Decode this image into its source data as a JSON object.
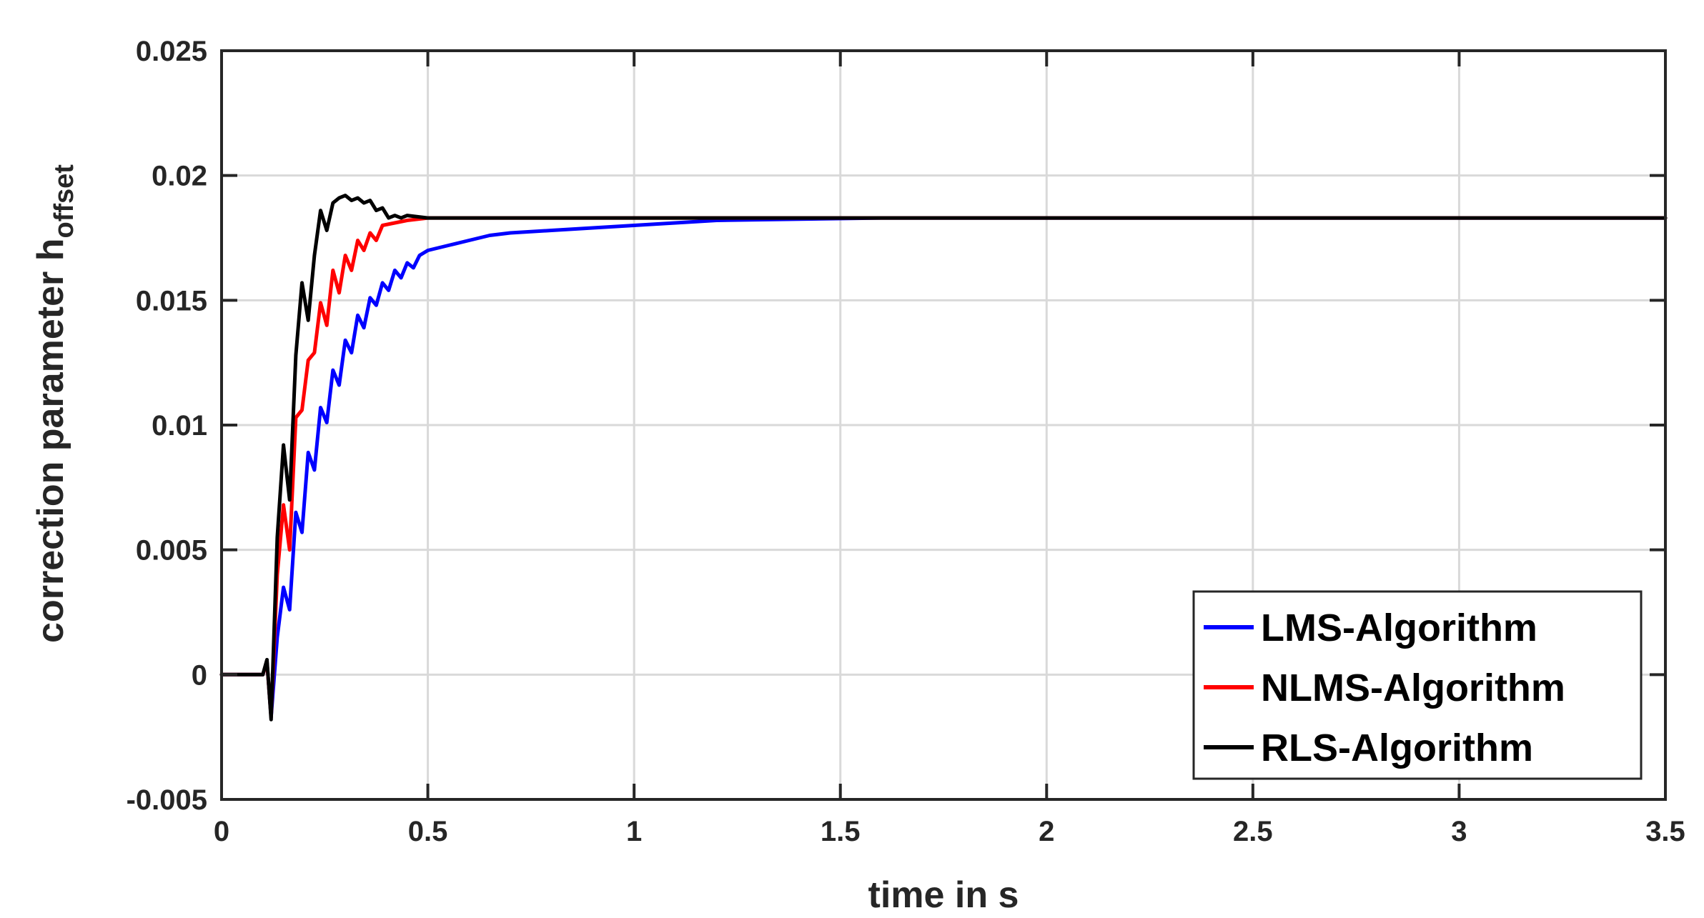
{
  "chart_data": {
    "type": "line",
    "title": "",
    "xlabel": "time in s",
    "ylabel": {
      "main": "correction parameter h",
      "subscript": "offset"
    },
    "xlim": [
      0,
      3.5
    ],
    "ylim": [
      -0.005,
      0.025
    ],
    "xticks": [
      0,
      0.5,
      1,
      1.5,
      2,
      2.5,
      3,
      3.5
    ],
    "xtick_labels": [
      "0",
      "0.5",
      "1",
      "1.5",
      "2",
      "2.5",
      "3",
      "3.5"
    ],
    "yticks": [
      -0.005,
      0,
      0.005,
      0.01,
      0.015,
      0.02,
      0.025
    ],
    "ytick_labels": [
      "-0.005",
      "0",
      "0.005",
      "0.01",
      "0.015",
      "0.02",
      "0.025"
    ],
    "grid": true,
    "legend_position": "bottom-right",
    "series": [
      {
        "name": "LMS-Algorithm",
        "color": "#0000ff",
        "x": [
          0,
          0.1,
          0.11,
          0.12,
          0.135,
          0.15,
          0.165,
          0.18,
          0.195,
          0.21,
          0.225,
          0.24,
          0.255,
          0.27,
          0.285,
          0.3,
          0.315,
          0.33,
          0.345,
          0.36,
          0.375,
          0.39,
          0.405,
          0.42,
          0.435,
          0.45,
          0.465,
          0.48,
          0.5,
          0.55,
          0.6,
          0.65,
          0.7,
          0.8,
          0.9,
          1.0,
          1.1,
          1.2,
          1.4,
          1.6,
          2.0,
          3.5
        ],
        "y": [
          0,
          0,
          0.0005,
          -0.0017,
          0.0015,
          0.0035,
          0.0026,
          0.0065,
          0.0057,
          0.0089,
          0.0082,
          0.0107,
          0.0101,
          0.0122,
          0.0116,
          0.0134,
          0.0129,
          0.0144,
          0.0139,
          0.0151,
          0.0148,
          0.0157,
          0.0154,
          0.0162,
          0.0159,
          0.0165,
          0.0163,
          0.0168,
          0.017,
          0.0172,
          0.0174,
          0.0176,
          0.0177,
          0.0178,
          0.0179,
          0.018,
          0.0181,
          0.0182,
          0.01825,
          0.0183,
          0.0183,
          0.0183
        ]
      },
      {
        "name": "NLMS-Algorithm",
        "color": "#ff0000",
        "x": [
          0,
          0.1,
          0.11,
          0.12,
          0.135,
          0.15,
          0.165,
          0.18,
          0.195,
          0.21,
          0.225,
          0.24,
          0.255,
          0.27,
          0.285,
          0.3,
          0.315,
          0.33,
          0.345,
          0.36,
          0.375,
          0.39,
          0.42,
          0.45,
          0.5,
          0.6,
          1.0,
          3.5
        ],
        "y": [
          0,
          0,
          0.0005,
          -0.0017,
          0.004,
          0.0068,
          0.005,
          0.0103,
          0.0106,
          0.0126,
          0.0129,
          0.0149,
          0.014,
          0.0162,
          0.0153,
          0.0168,
          0.0162,
          0.0174,
          0.017,
          0.0177,
          0.0174,
          0.018,
          0.0181,
          0.0182,
          0.0183,
          0.0183,
          0.0183,
          0.0183
        ]
      },
      {
        "name": "RLS-Algorithm",
        "color": "#000000",
        "x": [
          0,
          0.1,
          0.11,
          0.12,
          0.135,
          0.15,
          0.165,
          0.18,
          0.195,
          0.21,
          0.225,
          0.24,
          0.255,
          0.27,
          0.285,
          0.3,
          0.315,
          0.33,
          0.345,
          0.36,
          0.375,
          0.39,
          0.405,
          0.42,
          0.435,
          0.45,
          0.5,
          0.6,
          1.0,
          3.5
        ],
        "y": [
          0,
          0,
          0.0006,
          -0.0018,
          0.0055,
          0.0092,
          0.007,
          0.0128,
          0.0157,
          0.0142,
          0.0168,
          0.0186,
          0.0178,
          0.0189,
          0.0191,
          0.0192,
          0.019,
          0.0191,
          0.0189,
          0.019,
          0.0186,
          0.0187,
          0.0183,
          0.0184,
          0.0183,
          0.0184,
          0.0183,
          0.0183,
          0.0183,
          0.0183
        ]
      }
    ]
  }
}
